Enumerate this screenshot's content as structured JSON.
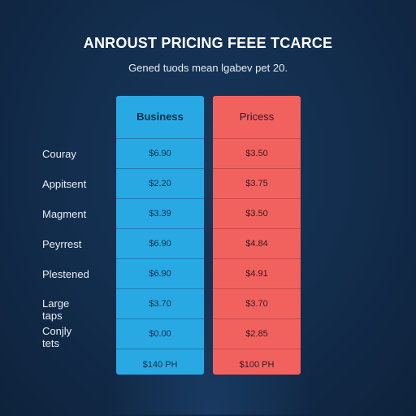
{
  "title": "ANROUST PRICING FEEE TCARCE",
  "subtitle": "Gened tuods mean lgabev pet 20.",
  "row_labels": [
    "Couray",
    "Appitsent",
    "Magment",
    "Peyrrest",
    "Plestened",
    "Large taps",
    "Conjly tets"
  ],
  "columns": [
    {
      "header": "Business",
      "color": "#29a9e4",
      "cells": [
        "$6.90",
        "$2.20",
        "$3.39",
        "$6.90",
        "$6.90",
        "$3.70",
        "$0.00"
      ],
      "total": "$140 PH"
    },
    {
      "header": "Pricess",
      "color": "#f1625f",
      "cells": [
        "$3.50",
        "$3.75",
        "$3.50",
        "$4.84",
        "$4.91",
        "$3.70",
        "$2.85"
      ],
      "total": "$100 PH"
    }
  ]
}
